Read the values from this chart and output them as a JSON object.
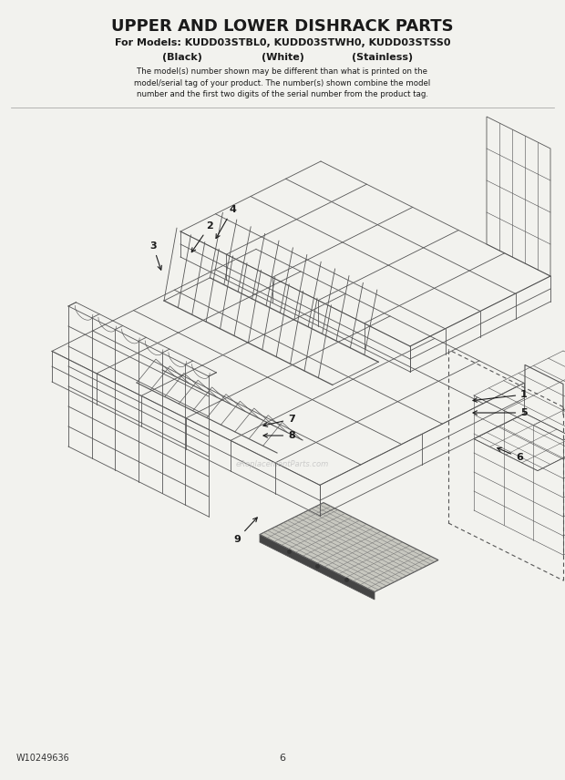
{
  "title": "UPPER AND LOWER DISHRACK PARTS",
  "subtitle1": "For Models: KUDD03STBL0, KUDD03STWH0, KUDD03STSS0",
  "sub_black": "(Black)",
  "sub_white": "(White)",
  "sub_stainless": "(Stainless)",
  "description": "The model(s) number shown may be different than what is printed on the\nmodel/serial tag of your product. The number(s) shown combine the model\nnumber and the first two digits of the serial number from the product tag.",
  "footer_left": "W10249636",
  "footer_center": "6",
  "bg_color": "#f2f2ee",
  "line_color": "#555555",
  "text_color": "#1a1a1a"
}
